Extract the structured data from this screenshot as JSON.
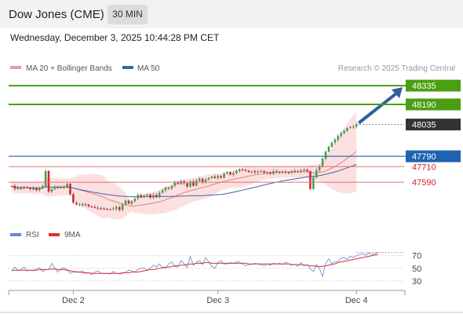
{
  "header": {
    "instrument": "Dow Jones (CME)",
    "timeframe": "30 MIN"
  },
  "datetime": "Wednesday, December 3, 2025 10:44:28 PM CET",
  "colors": {
    "resistance": "#4a9e11",
    "pivot": "#1f62b3",
    "support": "#e2707a",
    "price_tag": "#333333",
    "bb_fill": "#fbdada",
    "ma20": "#e58080",
    "ma50": "#3f62a8",
    "bull": "#44a046",
    "bear": "#d2232a",
    "rsi": "#6a86d8",
    "ma9": "#e03030",
    "arrow": "#2f5fa0"
  },
  "chart_data": [
    {
      "type": "candlestick",
      "legend": [
        "MA 20 + Bollinger Bands",
        "MA 50"
      ],
      "watermark": "Research © 2025 Trading Central",
      "ylim": [
        47300,
        48390
      ],
      "levels": [
        {
          "value": 48335,
          "label": "48335",
          "kind": "resistance"
        },
        {
          "value": 48190,
          "label": "48190",
          "kind": "resistance"
        },
        {
          "value": 48035,
          "label": "48035",
          "kind": "last"
        },
        {
          "value": 47790,
          "label": "47790",
          "kind": "pivot"
        },
        {
          "value": 47710,
          "label": "47710",
          "kind": "support"
        },
        {
          "value": 47590,
          "label": "47590",
          "kind": "support"
        }
      ],
      "xticks": [
        {
          "index": 20,
          "label": "Dec 2"
        },
        {
          "index": 67,
          "label": "Dec 3"
        },
        {
          "index": 112,
          "label": "Dec 4"
        }
      ],
      "n_slots": 128,
      "closes": [
        47561,
        47540,
        47546,
        47541,
        47553,
        47548,
        47536,
        47542,
        47528,
        47544,
        47559,
        47676,
        47518,
        47538,
        47552,
        47548,
        47551,
        47557,
        47578,
        47498,
        47432,
        47418,
        47412,
        47421,
        47417,
        47404,
        47398,
        47393,
        47390,
        47388,
        47385,
        47382,
        47380,
        47385,
        47398,
        47376,
        47418,
        47448,
        47424,
        47444,
        47463,
        47492,
        47474,
        47488,
        47496,
        47472,
        47492,
        47477,
        47508,
        47528,
        47548,
        47542,
        47562,
        47586,
        47576,
        47598,
        47582,
        47556,
        47596,
        47563,
        47601,
        47616,
        47588,
        47611,
        47622,
        47633,
        47622,
        47638,
        47626,
        47658,
        47668,
        47648,
        47661,
        47676,
        47688,
        47684,
        47679,
        47668,
        47674,
        47665,
        47672,
        47676,
        47663,
        47668,
        47656,
        47674,
        47668,
        47663,
        47672,
        47667,
        47664,
        47676,
        47668,
        47673,
        47680,
        47688,
        47676,
        47538,
        47626,
        47683,
        47714,
        47772,
        47826,
        47864,
        47896,
        47918,
        47946,
        47968,
        47986,
        48008,
        48016,
        48018,
        48035
      ]
    },
    {
      "type": "line",
      "title": "RSI",
      "legend": [
        "RSI",
        "9MA"
      ],
      "ylim": [
        20,
        82
      ],
      "yticks": [
        70,
        50,
        30
      ],
      "xticks": [
        {
          "index": 20,
          "label": "Dec 2"
        },
        {
          "index": 67,
          "label": "Dec 3"
        },
        {
          "index": 112,
          "label": "Dec 4"
        }
      ],
      "series": [
        {
          "name": "RSI",
          "values": [
            45,
            52,
            46,
            48,
            52,
            46,
            47,
            46,
            49,
            51,
            45,
            48,
            48,
            58,
            50,
            44,
            49,
            51,
            48,
            42,
            44,
            45,
            44,
            46,
            42,
            43,
            40,
            44,
            46,
            42,
            42,
            42,
            41,
            45,
            42,
            41,
            42,
            44,
            47,
            46,
            44,
            48,
            50,
            51,
            47,
            50,
            55,
            52,
            57,
            51,
            50,
            57,
            60,
            53,
            52,
            62,
            57,
            51,
            69,
            55,
            59,
            62,
            56,
            67,
            60,
            53,
            50,
            59,
            62,
            57,
            57,
            59,
            58,
            60,
            60,
            57,
            54,
            56,
            56,
            58,
            57,
            56,
            54,
            57,
            55,
            58,
            57,
            58,
            56,
            60,
            57,
            55,
            56,
            53,
            59,
            54,
            56,
            49,
            45,
            56,
            50,
            37,
            58,
            65,
            57,
            60,
            61,
            66,
            67,
            64,
            69,
            67,
            70,
            72,
            73,
            71,
            74,
            72,
            73,
            75
          ]
        },
        {
          "name": "9MA",
          "values": [
            47,
            47,
            47,
            47,
            47,
            47,
            47,
            47,
            47,
            48,
            48,
            48,
            48,
            49,
            49,
            48,
            48,
            48,
            47,
            46,
            45,
            44,
            44,
            43,
            43,
            43,
            42,
            42,
            42,
            42,
            42,
            42,
            42,
            42,
            42,
            42,
            43,
            43,
            43,
            44,
            44,
            44,
            45,
            46,
            47,
            48,
            48,
            49,
            50,
            51,
            52,
            52,
            53,
            54,
            54,
            55,
            55,
            56,
            57,
            57,
            58,
            58,
            58,
            59,
            59,
            58,
            58,
            58,
            58,
            58,
            58,
            58,
            58,
            58,
            58,
            58,
            58,
            57,
            57,
            57,
            57,
            57,
            57,
            57,
            57,
            57,
            57,
            57,
            57,
            57,
            57,
            56,
            56,
            56,
            56,
            55,
            55,
            54,
            54,
            53,
            53,
            53,
            54,
            55,
            56,
            57,
            59,
            60,
            61,
            62,
            63,
            64,
            65,
            66,
            67,
            68,
            69,
            70,
            71,
            72
          ]
        }
      ]
    }
  ]
}
